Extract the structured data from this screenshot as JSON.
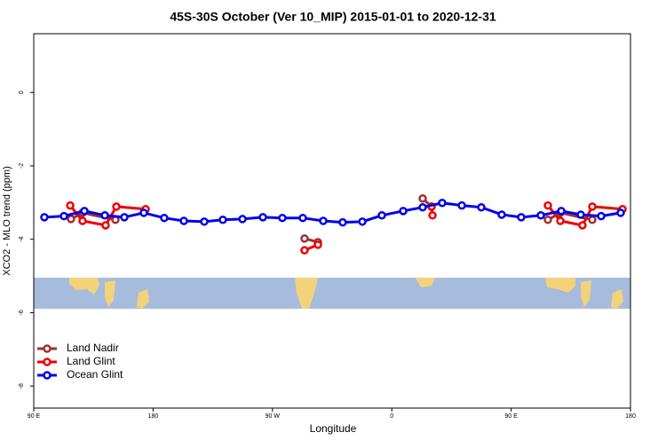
{
  "chart_data": {
    "type": "line",
    "title": "45S-30S October (Ver 10_MIP)   2015-01-01 to 2020-12-31",
    "x_label": "Longitude",
    "y_label": "XCO2 - MLO trend (ppm)",
    "xlim": [
      90,
      540
    ],
    "ylim": [
      -8.6,
      1.6
    ],
    "xticks": [
      {
        "value": 90,
        "label": "90 E"
      },
      180,
      {
        "value": 270,
        "label": "90 W"
      },
      {
        "value": 360,
        "label": "0"
      },
      {
        "value": 450,
        "label": "90 E"
      },
      {
        "value": 540,
        "label": "180"
      }
    ],
    "yticks": [
      0,
      -2,
      -4,
      -6,
      -8
    ],
    "legend": "bottom-left",
    "series": [
      {
        "name": "Land Nadir",
        "color": "#a03030",
        "x": [
          118.1,
          126.8,
          151.6,
          null,
          294.2,
          304.3,
          null,
          383.3,
          390,
          null,
          477.7,
          487.1,
          511.2
        ],
        "values": [
          -3.45,
          -3.28,
          -3.47,
          null,
          -3.98,
          -4.08,
          null,
          -2.89,
          -3.11,
          null,
          -3.47,
          -3.28,
          -3.47
        ]
      },
      {
        "name": "Land Glint",
        "color": "#ee0000",
        "x": [
          117.5,
          126.8,
          144.2,
          152.3,
          174.4,
          null,
          294.2,
          304.3,
          null,
          390,
          390.7,
          null,
          477.7,
          487.1,
          503.8,
          511.2,
          534
        ],
        "values": [
          -3.08,
          -3.5,
          -3.62,
          -3.11,
          -3.18,
          null,
          -4.3,
          -4.15,
          null,
          -3.11,
          -3.35,
          null,
          -3.08,
          -3.5,
          -3.62,
          -3.11,
          -3.18
        ]
      },
      {
        "name": "Ocean Glint",
        "color": "#0000ee",
        "x": [
          98,
          112.8,
          128.2,
          143.6,
          158.3,
          173,
          188.4,
          203.2,
          218.6,
          232.6,
          247.4,
          262.8,
          277.5,
          292.9,
          308.3,
          323,
          337.8,
          352.5,
          368.6,
          383.3,
          398,
          412.8,
          427.5,
          442.9,
          457.6,
          472.4,
          487.8,
          502.5,
          517.9,
          532.6
        ],
        "values": [
          -3.4,
          -3.37,
          -3.23,
          -3.35,
          -3.4,
          -3.28,
          -3.42,
          -3.5,
          -3.52,
          -3.47,
          -3.45,
          -3.4,
          -3.42,
          -3.42,
          -3.5,
          -3.54,
          -3.52,
          -3.35,
          -3.23,
          -3.13,
          -3.01,
          -3.08,
          -3.13,
          -3.33,
          -3.4,
          -3.35,
          -3.23,
          -3.33,
          -3.37,
          -3.28
        ]
      }
    ]
  }
}
